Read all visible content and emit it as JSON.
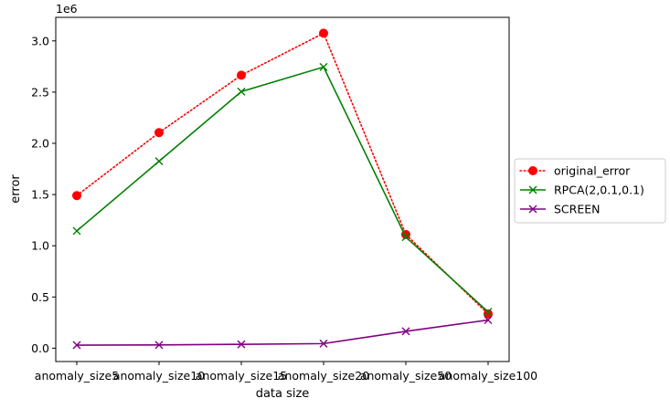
{
  "chart_data": {
    "type": "line",
    "categories": [
      "anomaly_size5",
      "anomaly_size10",
      "anomaly_size15",
      "anomaly_size20",
      "anomaly_size50",
      "anomaly_size100"
    ],
    "series": [
      {
        "name": "original_error",
        "values": [
          1490000,
          2105000,
          2665000,
          3075000,
          1110000,
          335000
        ],
        "color": "#ff0000",
        "line_style": "dotted",
        "marker": "circle"
      },
      {
        "name": "RPCA(2,0.1,0.1)",
        "values": [
          1145000,
          1825000,
          2505000,
          2745000,
          1085000,
          355000
        ],
        "color": "#008000",
        "line_style": "solid",
        "marker": "x"
      },
      {
        "name": "SCREEN",
        "values": [
          30000,
          32000,
          38000,
          45000,
          165000,
          275000
        ],
        "color": "#800080",
        "line_style": "solid",
        "marker": "x"
      }
    ],
    "xlabel": "data size",
    "ylabel": "error",
    "y_scale_label": "1e6",
    "ylim": [
      -130000,
      3230000
    ],
    "yticks": [
      0,
      500000,
      1000000,
      1500000,
      2000000,
      2500000,
      3000000
    ],
    "ytick_labels": [
      "0.0",
      "0.5",
      "1.0",
      "1.5",
      "2.0",
      "2.5",
      "3.0"
    ],
    "grid": false,
    "legend_position": "center-right-outside"
  }
}
